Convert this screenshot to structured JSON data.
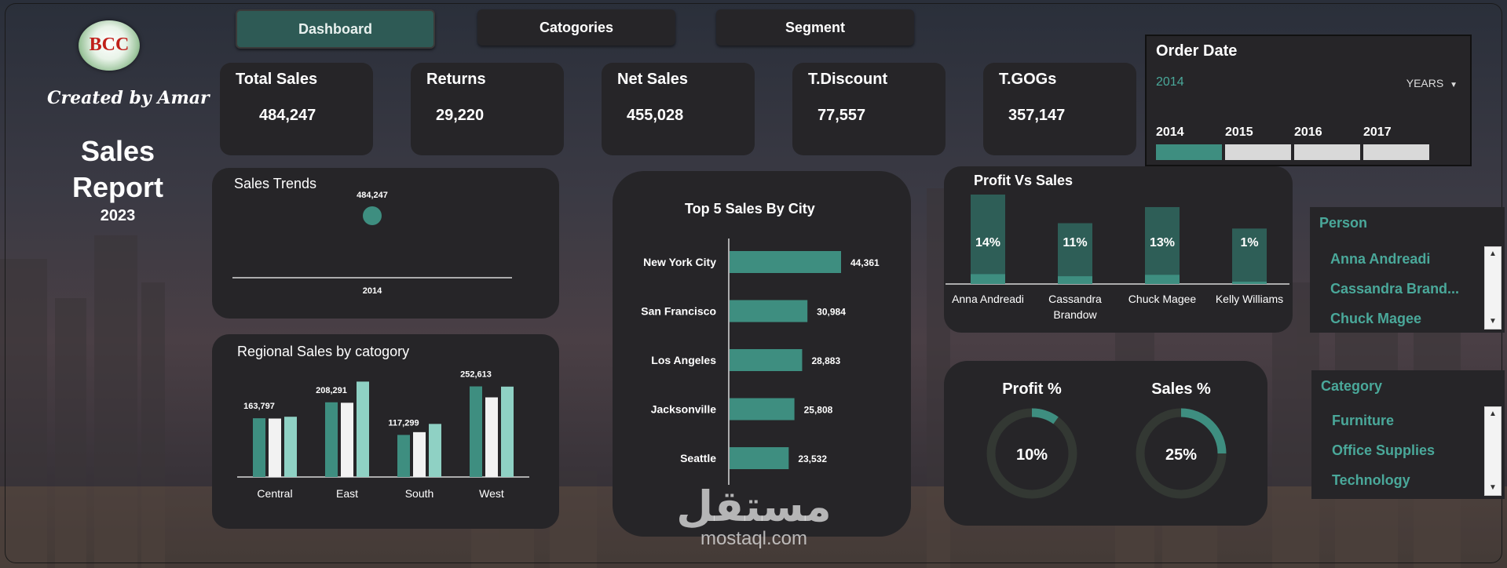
{
  "brand": {
    "logo_text": "BCC",
    "created_by": "Created by Amar",
    "report_title_line1": "Sales",
    "report_title_line2": "Report",
    "report_year": "2023"
  },
  "nav": {
    "tabs": [
      {
        "label": "Dashboard",
        "active": true
      },
      {
        "label": "Catogories",
        "active": false
      },
      {
        "label": "Segment",
        "active": false
      }
    ]
  },
  "kpis": [
    {
      "title": "Total Sales",
      "value": "484,247"
    },
    {
      "title": "Returns",
      "value": "29,220"
    },
    {
      "title": "Net Sales",
      "value": "455,028"
    },
    {
      "title": "T.Discount",
      "value": "77,557"
    },
    {
      "title": "T.GOGs",
      "value": "357,147"
    }
  ],
  "order_date": {
    "title": "Order Date",
    "selected": "2014",
    "level_label": "YEARS",
    "years": [
      {
        "label": "2014",
        "selected": true
      },
      {
        "label": "2015",
        "selected": false
      },
      {
        "label": "2016",
        "selected": false
      },
      {
        "label": "2017",
        "selected": false
      }
    ]
  },
  "colors": {
    "teal": "#3e8e80",
    "teal_light": "#8fd1c4",
    "white_bar": "#f2f2f2",
    "panel": "#262528",
    "accent": "#4aa89a"
  },
  "sales_trend": {
    "title": "Sales Trends",
    "chart_data": {
      "type": "scatter",
      "x": [
        "2014"
      ],
      "values": [
        484247
      ],
      "data_labels": [
        "484,247"
      ]
    }
  },
  "regional": {
    "title": "Regional Sales by catogory",
    "chart_data": {
      "type": "bar",
      "categories": [
        "Central",
        "East",
        "South",
        "West"
      ],
      "series": [
        {
          "values": [
            163797,
            208291,
            117299,
            252613
          ]
        },
        {
          "values": [
            163000,
            207000,
            125000,
            222000
          ]
        },
        {
          "values": [
            168000,
            266000,
            148000,
            252000
          ]
        }
      ],
      "data_labels": [
        "163,797",
        "208,291",
        "117,299",
        "252,613"
      ],
      "ylim": [
        0,
        280000
      ]
    }
  },
  "top_cities": {
    "title": "Top 5 Sales By City",
    "chart_data": {
      "type": "bar",
      "orientation": "horizontal",
      "categories": [
        "New York City",
        "San Francisco",
        "Los Angeles",
        "Jacksonville",
        "Seattle"
      ],
      "values": [
        44361,
        30984,
        28883,
        25808,
        23532
      ],
      "data_labels": [
        "44,361",
        "30,984",
        "28,883",
        "25,808",
        "23,532"
      ]
    }
  },
  "profit_sales": {
    "title": "Profit Vs Sales",
    "chart_data": {
      "type": "bar",
      "categories": [
        "Anna Andreadi",
        "Cassandra Brandow",
        "Chuck Magee",
        "Kelly Williams"
      ],
      "category_lines": [
        [
          "Anna Andreadi"
        ],
        [
          "Cassandra",
          "Brandow"
        ],
        [
          "Chuck Magee"
        ],
        [
          "Kelly Williams"
        ]
      ],
      "sales_relative": [
        1.0,
        0.68,
        0.86,
        0.62
      ],
      "profit_pct": [
        14,
        11,
        13,
        1
      ],
      "data_labels": [
        "14%",
        "11%",
        "13%",
        "1%"
      ]
    }
  },
  "gauges": {
    "profit": {
      "title": "Profit %",
      "value": 10,
      "label": "10%"
    },
    "sales": {
      "title": "Sales %",
      "value": 25,
      "label": "25%"
    }
  },
  "person_slicer": {
    "title": "Person",
    "items": [
      "Anna Andreadi",
      "Cassandra Brand...",
      "Chuck Magee"
    ]
  },
  "category_slicer": {
    "title": "Category",
    "items": [
      "Furniture",
      "Office Supplies",
      "Technology"
    ]
  },
  "watermark": {
    "arabic": "مستقل",
    "latin": "mostaql.com"
  }
}
